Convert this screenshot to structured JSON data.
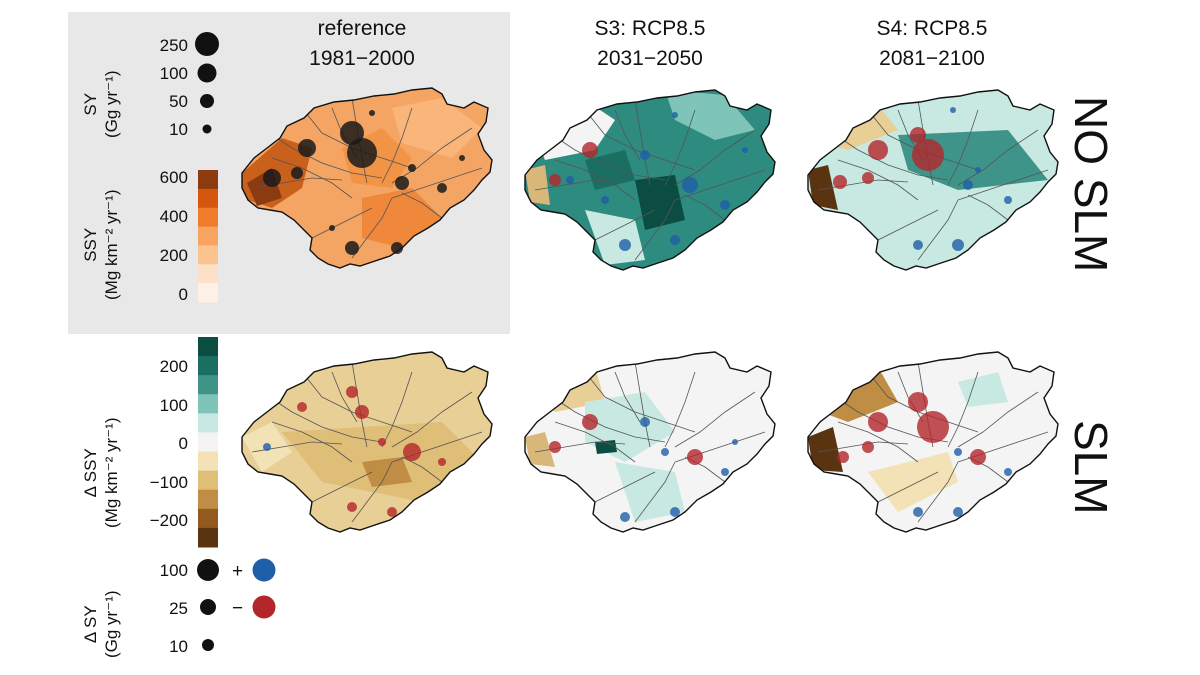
{
  "panel_titles": [
    {
      "line1": "reference",
      "line2": "1981−2000"
    },
    {
      "line1": "S3: RCP8.5",
      "line2": "2031−2050"
    },
    {
      "line1": "S4: RCP8.5",
      "line2": "2081−2100"
    }
  ],
  "row_labels": {
    "top": "NO SLM",
    "bottom": "SLM"
  },
  "sy_legend": {
    "title_line1": "SY",
    "title_line2": "(Gg yr⁻¹)",
    "values": [
      "250",
      "100",
      "50",
      "10"
    ]
  },
  "ssy_legend": {
    "title_line1": "SSY",
    "title_line2": "(Mg km⁻² yr⁻¹)",
    "ticks": [
      "600",
      "400",
      "200",
      "0"
    ],
    "colors": [
      "#8c3a0f",
      "#d4570d",
      "#ef7d2c",
      "#f7a45e",
      "#fbc490",
      "#fde0c5",
      "#fff0e6"
    ]
  },
  "dssy_legend": {
    "title_line1": "Δ SSY",
    "title_line2": "(Mg km⁻² yr⁻¹)",
    "ticks": [
      "200",
      "100",
      "0",
      "−100",
      "−200"
    ],
    "colors": [
      "#0b4d42",
      "#1b6e62",
      "#3f948a",
      "#7fc4b9",
      "#c7e9e1",
      "#f4f4f4",
      "#f3e2b5",
      "#dfbe78",
      "#bf8d43",
      "#93591f",
      "#5a3411"
    ]
  },
  "dsy_legend": {
    "title_line1": "Δ SY",
    "title_line2": "(Gg yr⁻¹)",
    "values": [
      "100",
      "25",
      "10"
    ],
    "plus": "+",
    "minus": "−",
    "increase_color": "#1f5ea8",
    "decrease_color": "#b3262a"
  }
}
